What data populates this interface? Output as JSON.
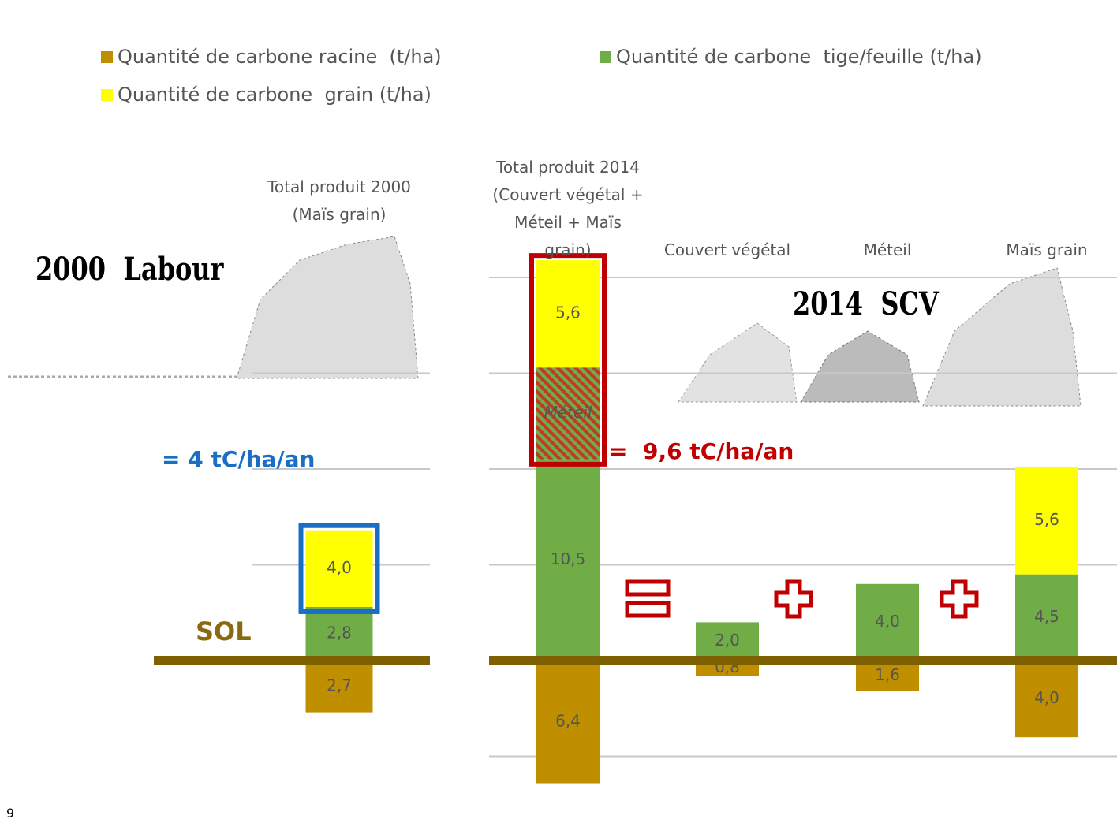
{
  "legend_order": [
    0,
    2,
    1
  ],
  "annotations": {
    "left_title": "2000  Labour",
    "left_total": "= 4 tC/ha/an",
    "soil": "SOL",
    "right_title": "2014  SCV",
    "right_total": "=  9,6 tC/ha/an",
    "page_number": "9"
  },
  "chart_data": [
    {
      "type": "bar",
      "stacked": true,
      "grid": true,
      "ylim": [
        -8.5,
        20
      ],
      "yticks": [
        0,
        5,
        10,
        15
      ],
      "categories": [
        "Total produit 2000 (Maïs grain)"
      ],
      "highlight_color": "#1a6fc4",
      "series": [
        {
          "name": "Quantité de carbone racine  (t/ha)",
          "color": "#bf8f00",
          "values": [
            -2.7
          ],
          "value_labels": [
            "2,7"
          ]
        },
        {
          "name": "Quantité de carbone  tige/feuille (t/ha)",
          "color": "#70ad47",
          "values": [
            2.8
          ],
          "value_labels": [
            "2,8"
          ]
        },
        {
          "name": "Quantité de carbone  grain (t/ha)",
          "color": "#ffff00",
          "values": [
            4.0
          ],
          "value_labels": [
            "4,0"
          ]
        }
      ]
    },
    {
      "type": "bar",
      "stacked": true,
      "grid": true,
      "ylim": [
        -8.5,
        20
      ],
      "yticks": [
        -5,
        0,
        5,
        10,
        15,
        20
      ],
      "categories": [
        "Total produit 2014 (Couvert végétal + Méteil + Maïs grain)",
        "Couvert végétal",
        "Méteil",
        "Maïs grain"
      ],
      "highlight_color": "#c00000",
      "series": [
        {
          "color": "#bf8f00",
          "values": [
            -6.4,
            -0.8,
            -1.6,
            -4.0
          ],
          "value_labels": [
            "6,4",
            "0,8",
            "1,6",
            "4,0"
          ]
        },
        {
          "color": "#70ad47",
          "values": [
            10.5,
            2.0,
            4.0,
            4.5
          ],
          "value_labels": [
            "10,5",
            "2,0",
            "4,0",
            "4,5"
          ]
        },
        {
          "name": "Méteil",
          "hatch": true,
          "color": "#70ad47",
          "values": [
            4.8,
            null,
            null,
            null
          ]
        },
        {
          "color": "#ffff00",
          "values": [
            5.6,
            null,
            null,
            5.6
          ],
          "value_labels": [
            "5,6",
            null,
            null,
            "5,6"
          ]
        }
      ]
    }
  ]
}
